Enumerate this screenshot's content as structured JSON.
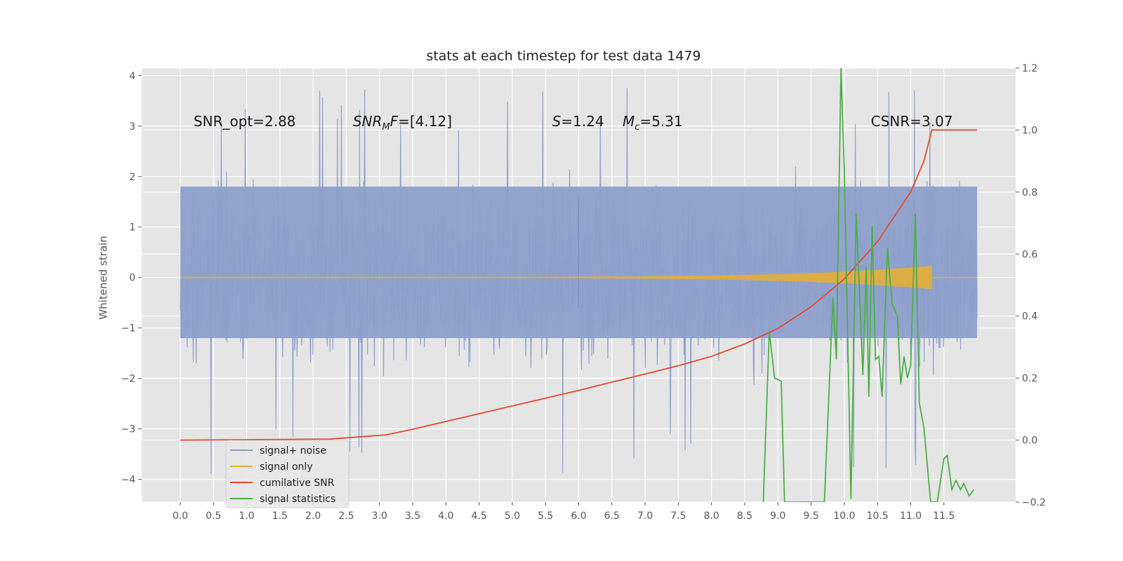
{
  "colors": {
    "background": "#e5e5e5",
    "grid": "#ffffff",
    "signal_noise": "#8da0cb",
    "signal_only": "#e5ae38",
    "cumulative_snr": "#e24a33",
    "signal_statistics": "#4daf4a"
  },
  "chart_data": {
    "type": "line",
    "title": "stats at each timestep for test data 1479",
    "ylabel": "Whitened strain",
    "xlabel": "",
    "xlim": [
      -0.58,
      12.58
    ],
    "ylim": [
      -4.45,
      4.15
    ],
    "y2lim": [
      -0.2,
      1.2
    ],
    "grid": true,
    "legend_position": "lower-left",
    "x_ticks": [
      "0.0",
      "0.5",
      "1.0",
      "1.5",
      "2.0",
      "2.5",
      "3.0",
      "3.5",
      "4.0",
      "4.5",
      "5.0",
      "5.5",
      "6.0",
      "6.5",
      "7.0",
      "7.5",
      "8.0",
      "8.5",
      "9.0",
      "9.5",
      "10.0",
      "10.5",
      "11.0",
      "11.5"
    ],
    "y_ticks": [
      "−4",
      "−3",
      "−2",
      "−1",
      "0",
      "1",
      "2",
      "3",
      "4"
    ],
    "y_tick_values": [
      -4,
      -3,
      -2,
      -1,
      0,
      1,
      2,
      3,
      4
    ],
    "y2_ticks": [
      "−0.2",
      "0.0",
      "0.2",
      "0.4",
      "0.6",
      "0.8",
      "1.0",
      "1.2"
    ],
    "y2_tick_values": [
      -0.2,
      0.0,
      0.2,
      0.4,
      0.6,
      0.8,
      1.0,
      1.2
    ],
    "annotations": [
      {
        "id": "snr_opt",
        "text": "SNR_opt=2.88",
        "x": 0.2,
        "y": 3.0
      },
      {
        "id": "snr_mf",
        "text": "SNR_MF=[4.12]",
        "x": 2.6,
        "y": 3.0
      },
      {
        "id": "s_mc",
        "text": "S=1.24   Mc=5.31",
        "x": 5.6,
        "y": 3.0
      },
      {
        "id": "csnr",
        "text": "CSNR=3.07",
        "x": 10.4,
        "y": 3.0
      }
    ],
    "series": [
      {
        "name": "signal+ noise",
        "axis": "left",
        "kind": "noise_band",
        "x_range": [
          0.0,
          12.0
        ],
        "typical_range": [
          -1.2,
          1.8
        ],
        "extremes": [
          -4.0,
          3.8
        ]
      },
      {
        "name": "signal only",
        "axis": "left",
        "kind": "chirp",
        "x_range": [
          0.0,
          11.32
        ],
        "peak_amplitude": 0.22,
        "flat_after": [
          11.32,
          12.0
        ]
      },
      {
        "name": "cumilative SNR",
        "axis": "right",
        "x": [
          0.0,
          2.25,
          3.1,
          3.5,
          4.0,
          4.5,
          5.0,
          5.5,
          6.0,
          6.5,
          7.0,
          7.5,
          8.0,
          8.5,
          9.0,
          9.5,
          10.0,
          10.5,
          11.0,
          11.2,
          11.32,
          12.0
        ],
        "y": [
          0.0,
          0.003,
          0.017,
          0.035,
          0.06,
          0.085,
          0.11,
          0.135,
          0.16,
          0.187,
          0.213,
          0.24,
          0.27,
          0.31,
          0.36,
          0.43,
          0.52,
          0.64,
          0.8,
          0.9,
          1.0,
          1.0
        ]
      },
      {
        "name": "signal statistics",
        "axis": "right",
        "x": [
          8.78,
          8.87,
          8.95,
          9.05,
          9.1,
          9.7,
          9.83,
          9.88,
          9.95,
          10.0,
          10.05,
          10.1,
          10.18,
          10.28,
          10.33,
          10.37,
          10.42,
          10.47,
          10.52,
          10.57,
          10.65,
          10.72,
          10.8,
          10.85,
          10.9,
          10.95,
          11.0,
          11.07,
          11.13,
          11.2,
          11.3,
          11.4,
          11.5,
          11.55,
          11.62,
          11.68,
          11.75,
          11.8,
          11.88,
          11.95
        ],
        "y": [
          -0.2,
          0.35,
          0.2,
          0.19,
          -0.2,
          -0.2,
          0.46,
          0.26,
          1.2,
          0.87,
          0.35,
          -0.19,
          0.73,
          0.21,
          0.56,
          0.14,
          0.69,
          0.26,
          0.27,
          0.14,
          0.62,
          0.44,
          0.4,
          0.18,
          0.27,
          0.2,
          0.24,
          0.73,
          0.12,
          0.04,
          -0.2,
          -0.2,
          -0.06,
          -0.05,
          -0.16,
          -0.13,
          -0.16,
          -0.14,
          -0.18,
          -0.16
        ]
      }
    ],
    "legend": [
      "signal+ noise",
      "signal only",
      "cumilative SNR",
      "signal statistics"
    ]
  }
}
